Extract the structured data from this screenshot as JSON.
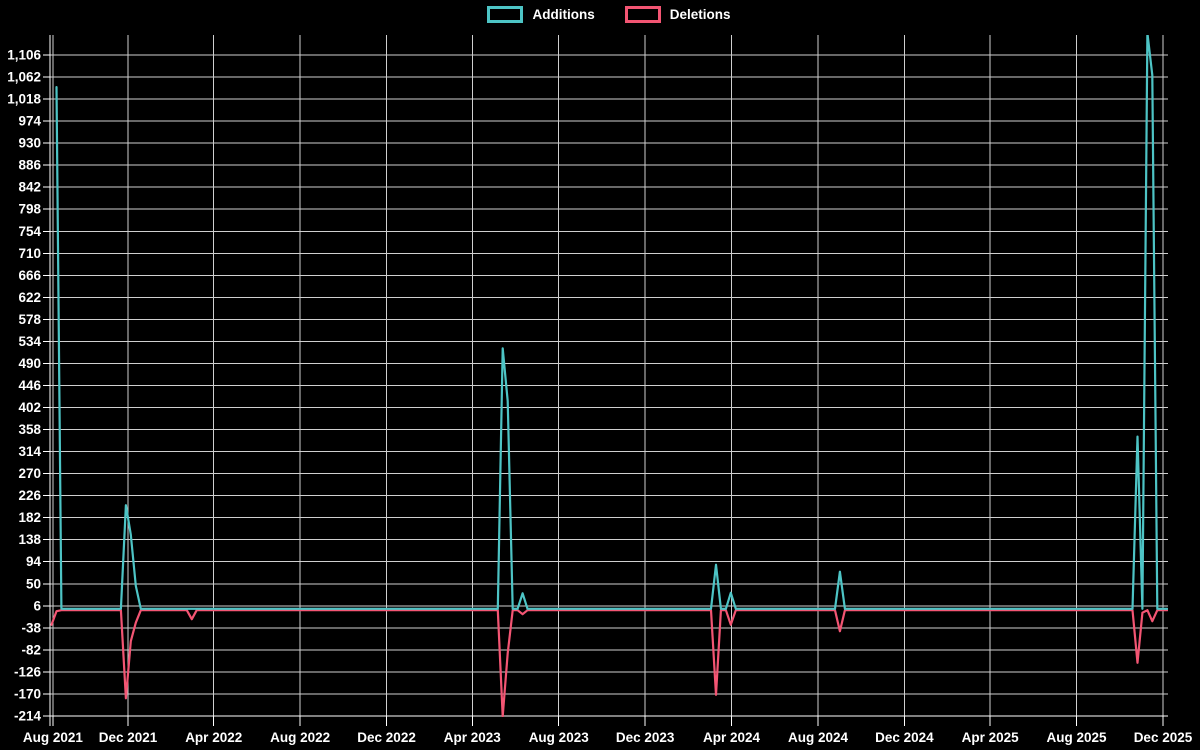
{
  "legend": [
    {
      "label": "Additions",
      "color": "#4DC4C5"
    },
    {
      "label": "Deletions",
      "color": "#F35573"
    }
  ],
  "chart_data": {
    "type": "line",
    "title": "",
    "grid": true,
    "legend_position": "top-center",
    "background_color": "#000000",
    "grid_color": "#CFCFCF",
    "axis_color": "#FFFFFF",
    "label_color": "#FFFFFF",
    "y_axis": {
      "min": -214,
      "max": 1106,
      "step": 44
    },
    "x_axis": {
      "ticks": [
        {
          "label": "Aug 2021",
          "date": "2021-08-17"
        },
        {
          "label": "Dec 2021",
          "date": "2021-12-01"
        },
        {
          "label": "Apr 2022",
          "date": "2022-04-01"
        },
        {
          "label": "Aug 2022",
          "date": "2022-08-01"
        },
        {
          "label": "Dec 2022",
          "date": "2022-12-01"
        },
        {
          "label": "Apr 2023",
          "date": "2023-04-01"
        },
        {
          "label": "Aug 2023",
          "date": "2023-08-01"
        },
        {
          "label": "Dec 2023",
          "date": "2023-12-01"
        },
        {
          "label": "Apr 2024",
          "date": "2024-04-01"
        },
        {
          "label": "Aug 2024",
          "date": "2024-08-01"
        },
        {
          "label": "Dec 2024",
          "date": "2024-12-01"
        },
        {
          "label": "Apr 2025",
          "date": "2025-04-01"
        },
        {
          "label": "Aug 2025",
          "date": "2025-08-01"
        },
        {
          "label": "Dec 2025",
          "date": "2025-12-01"
        }
      ]
    },
    "series": [
      {
        "name": "Additions",
        "color": "#4DC4C5",
        "points": [
          [
            "2021-08-22",
            1042
          ],
          [
            "2021-08-29",
            0
          ],
          [
            "2021-11-21",
            0
          ],
          [
            "2021-11-28",
            207
          ],
          [
            "2021-12-05",
            148
          ],
          [
            "2021-12-12",
            46
          ],
          [
            "2021-12-19",
            0
          ],
          [
            "2022-02-22",
            0
          ],
          [
            "2022-03-01",
            0
          ],
          [
            "2022-03-08",
            0
          ],
          [
            "2023-05-07",
            0
          ],
          [
            "2023-05-14",
            520
          ],
          [
            "2023-05-21",
            415
          ],
          [
            "2023-05-28",
            0
          ],
          [
            "2023-06-04",
            0
          ],
          [
            "2023-06-11",
            31
          ],
          [
            "2023-06-18",
            0
          ],
          [
            "2024-03-03",
            0
          ],
          [
            "2024-03-10",
            88
          ],
          [
            "2024-03-17",
            0
          ],
          [
            "2024-03-24",
            0
          ],
          [
            "2024-03-31",
            32
          ],
          [
            "2024-04-07",
            0
          ],
          [
            "2024-08-25",
            0
          ],
          [
            "2024-09-01",
            74
          ],
          [
            "2024-09-08",
            0
          ],
          [
            "2025-10-19",
            0
          ],
          [
            "2025-10-26",
            344
          ],
          [
            "2025-11-02",
            0
          ],
          [
            "2025-11-09",
            1150
          ],
          [
            "2025-11-16",
            1066
          ],
          [
            "2025-11-23",
            0
          ],
          [
            "2025-12-07",
            0
          ]
        ]
      },
      {
        "name": "Deletions",
        "color": "#F35573",
        "points": [
          [
            "2021-08-15",
            -29
          ],
          [
            "2021-08-22",
            -2
          ],
          [
            "2021-08-29",
            0
          ],
          [
            "2021-11-21",
            0
          ],
          [
            "2021-11-28",
            -176
          ],
          [
            "2021-12-05",
            -62
          ],
          [
            "2021-12-12",
            -25
          ],
          [
            "2021-12-19",
            0
          ],
          [
            "2022-02-22",
            0
          ],
          [
            "2022-03-01",
            -18
          ],
          [
            "2022-03-08",
            0
          ],
          [
            "2023-05-07",
            0
          ],
          [
            "2023-05-14",
            -212
          ],
          [
            "2023-05-21",
            -86
          ],
          [
            "2023-05-28",
            0
          ],
          [
            "2023-06-04",
            0
          ],
          [
            "2023-06-11",
            -8
          ],
          [
            "2023-06-18",
            0
          ],
          [
            "2024-03-03",
            0
          ],
          [
            "2024-03-10",
            -169
          ],
          [
            "2024-03-17",
            0
          ],
          [
            "2024-03-24",
            0
          ],
          [
            "2024-03-31",
            -29
          ],
          [
            "2024-04-07",
            0
          ],
          [
            "2024-08-25",
            0
          ],
          [
            "2024-09-01",
            -42
          ],
          [
            "2024-09-08",
            0
          ],
          [
            "2025-10-19",
            0
          ],
          [
            "2025-10-26",
            -105
          ],
          [
            "2025-11-02",
            -5
          ],
          [
            "2025-11-09",
            0
          ],
          [
            "2025-11-16",
            -22
          ],
          [
            "2025-11-23",
            0
          ],
          [
            "2025-12-07",
            0
          ]
        ]
      }
    ]
  }
}
